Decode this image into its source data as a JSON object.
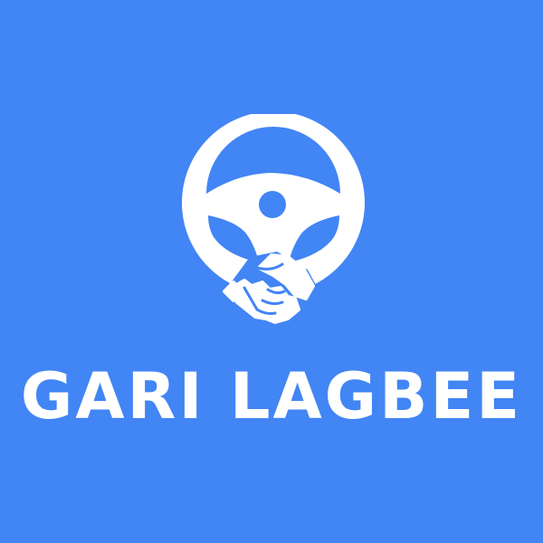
{
  "brand": {
    "name": "GARI LAGBEE"
  },
  "logo": {
    "icon": "steering-wheel-handshake-icon"
  },
  "colors": {
    "background": "#4285f4",
    "foreground": "#ffffff"
  }
}
